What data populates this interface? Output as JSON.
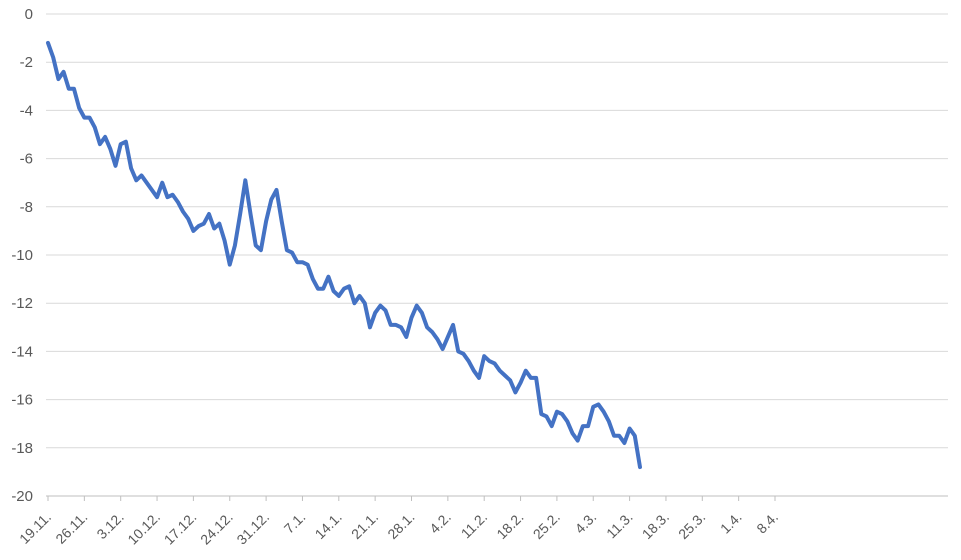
{
  "chart_data": {
    "type": "line",
    "title": "",
    "xlabel": "",
    "ylabel": "",
    "ylim": [
      -20,
      0
    ],
    "yticks": [
      0,
      -2,
      -4,
      -6,
      -8,
      -10,
      -12,
      -14,
      -16,
      -18,
      -20
    ],
    "grid": true,
    "legend": "none",
    "x_tick_labels": [
      "19.11.",
      "26.11.",
      "3.12.",
      "10.12.",
      "17.12.",
      "24.12.",
      "31.12.",
      "7.1.",
      "14.1.",
      "21.1.",
      "28.1.",
      "4.2.",
      "11.2.",
      "18.2.",
      "25.2.",
      "4.3.",
      "11.3.",
      "18.3.",
      "25.3.",
      "1.4.",
      "8.4."
    ],
    "colors": {
      "line": "#4472c4",
      "grid": "#d9d9d9",
      "text": "#595959"
    },
    "series": [
      {
        "values": [
          -1.2,
          -1.8,
          -2.7,
          -2.4,
          -3.1,
          -3.1,
          -3.9,
          -4.3,
          -4.3,
          -4.7,
          -5.4,
          -5.1,
          -5.6,
          -6.3,
          -5.4,
          -5.3,
          -6.4,
          -6.9,
          -6.7,
          -7.0,
          -7.3,
          -7.6,
          -7.0,
          -7.6,
          -7.5,
          -7.8,
          -8.2,
          -8.5,
          -9.0,
          -8.8,
          -8.7,
          -8.3,
          -8.9,
          -8.7,
          -9.4,
          -10.4,
          -9.6,
          -8.3,
          -6.9,
          -8.3,
          -9.6,
          -9.8,
          -8.6,
          -7.7,
          -7.3,
          -8.6,
          -9.8,
          -9.9,
          -10.3,
          -10.3,
          -10.4,
          -11.0,
          -11.4,
          -11.4,
          -10.9,
          -11.5,
          -11.7,
          -11.4,
          -11.3,
          -12.0,
          -11.7,
          -12.0,
          -13.0,
          -12.4,
          -12.1,
          -12.3,
          -12.9,
          -12.9,
          -13.0,
          -13.4,
          -12.6,
          -12.1,
          -12.4,
          -13.0,
          -13.2,
          -13.5,
          -13.9,
          -13.4,
          -12.9,
          -14.0,
          -14.1,
          -14.4,
          -14.8,
          -15.1,
          -14.2,
          -14.4,
          -14.5,
          -14.8,
          -15.0,
          -15.2,
          -15.7,
          -15.3,
          -14.8,
          -15.1,
          -15.1,
          -16.6,
          -16.7,
          -17.1,
          -16.5,
          -16.6,
          -16.9,
          -17.4,
          -17.7,
          -17.1,
          -17.1,
          -16.3,
          -16.2,
          -16.5,
          -16.9,
          -17.5,
          -17.5,
          -17.8,
          -17.2,
          -17.5,
          -18.8
        ]
      }
    ]
  }
}
